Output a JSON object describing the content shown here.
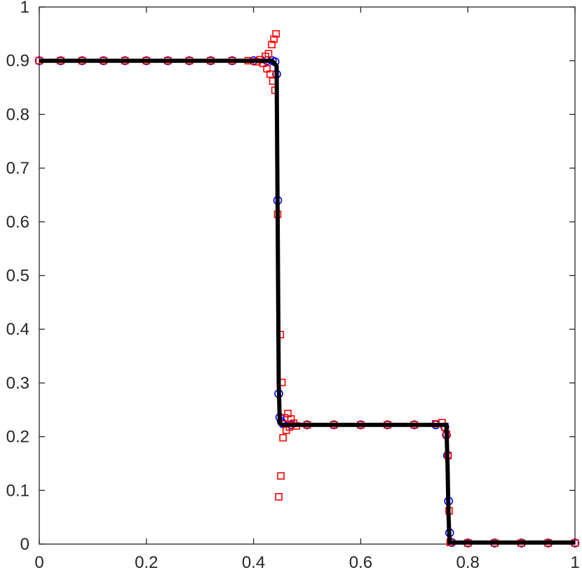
{
  "chart_data": {
    "type": "line",
    "title": "",
    "xlabel": "",
    "ylabel": "",
    "xlim": [
      0,
      1
    ],
    "ylim": [
      0,
      1
    ],
    "grid": false,
    "legend": "none",
    "x_ticks": [
      {
        "value": 0,
        "label": "0"
      },
      {
        "value": 0.2,
        "label": "0.2"
      },
      {
        "value": 0.4,
        "label": "0.4"
      },
      {
        "value": 0.6,
        "label": "0.6"
      },
      {
        "value": 0.8,
        "label": "0.8"
      },
      {
        "value": 1,
        "label": "1"
      }
    ],
    "y_ticks": [
      {
        "value": 0,
        "label": "0"
      },
      {
        "value": 0.1,
        "label": "0.1"
      },
      {
        "value": 0.2,
        "label": "0.2"
      },
      {
        "value": 0.3,
        "label": "0.3"
      },
      {
        "value": 0.4,
        "label": "0.4"
      },
      {
        "value": 0.5,
        "label": "0.5"
      },
      {
        "value": 0.6,
        "label": "0.6"
      },
      {
        "value": 0.7,
        "label": "0.7"
      },
      {
        "value": 0.8,
        "label": "0.8"
      },
      {
        "value": 0.9,
        "label": "0.9"
      },
      {
        "value": 1,
        "label": "1"
      }
    ],
    "series": [
      {
        "style": "line",
        "color": "#000000",
        "points": [
          [
            0,
            0.9
          ],
          [
            0.435,
            0.9
          ],
          [
            0.443,
            0.89
          ],
          [
            0.445,
            0.6
          ],
          [
            0.447,
            0.3
          ],
          [
            0.449,
            0.225
          ],
          [
            0.455,
            0.222
          ],
          [
            0.76,
            0.222
          ],
          [
            0.762,
            0.15
          ],
          [
            0.764,
            0.05
          ],
          [
            0.766,
            0.003
          ],
          [
            1,
            0.003
          ]
        ]
      },
      {
        "style": "markers",
        "marker": "circle",
        "color": "#0000ff",
        "points": [
          [
            0,
            0.9
          ],
          [
            0.04,
            0.9
          ],
          [
            0.08,
            0.9
          ],
          [
            0.12,
            0.9
          ],
          [
            0.16,
            0.9
          ],
          [
            0.2,
            0.9
          ],
          [
            0.24,
            0.9
          ],
          [
            0.28,
            0.9
          ],
          [
            0.32,
            0.9
          ],
          [
            0.36,
            0.9
          ],
          [
            0.4,
            0.9
          ],
          [
            0.425,
            0.9
          ],
          [
            0.435,
            0.9
          ],
          [
            0.44,
            0.898
          ],
          [
            0.443,
            0.875
          ],
          [
            0.445,
            0.64
          ],
          [
            0.447,
            0.28
          ],
          [
            0.449,
            0.236
          ],
          [
            0.452,
            0.228
          ],
          [
            0.455,
            0.224
          ],
          [
            0.47,
            0.222
          ],
          [
            0.5,
            0.222
          ],
          [
            0.55,
            0.222
          ],
          [
            0.6,
            0.222
          ],
          [
            0.65,
            0.222
          ],
          [
            0.7,
            0.222
          ],
          [
            0.74,
            0.222
          ],
          [
            0.757,
            0.218
          ],
          [
            0.76,
            0.203
          ],
          [
            0.762,
            0.165
          ],
          [
            0.764,
            0.08
          ],
          [
            0.766,
            0.021
          ],
          [
            0.77,
            0.003
          ],
          [
            0.8,
            0.002
          ],
          [
            0.85,
            0.002
          ],
          [
            0.9,
            0.002
          ],
          [
            0.95,
            0.002
          ],
          [
            1,
            0.002
          ]
        ]
      },
      {
        "style": "markers",
        "marker": "square",
        "color": "#ff0000",
        "points": [
          [
            0,
            0.9
          ],
          [
            0.04,
            0.9
          ],
          [
            0.08,
            0.9
          ],
          [
            0.12,
            0.9
          ],
          [
            0.16,
            0.9
          ],
          [
            0.2,
            0.9
          ],
          [
            0.24,
            0.9
          ],
          [
            0.28,
            0.9
          ],
          [
            0.32,
            0.9
          ],
          [
            0.36,
            0.9
          ],
          [
            0.39,
            0.9
          ],
          [
            0.405,
            0.898
          ],
          [
            0.412,
            0.902
          ],
          [
            0.418,
            0.895
          ],
          [
            0.422,
            0.908
          ],
          [
            0.425,
            0.885
          ],
          [
            0.428,
            0.913
          ],
          [
            0.431,
            0.875
          ],
          [
            0.434,
            0.93
          ],
          [
            0.436,
            0.862
          ],
          [
            0.438,
            0.94
          ],
          [
            0.44,
            0.845
          ],
          [
            0.442,
            0.95
          ],
          [
            0.445,
            0.614
          ],
          [
            0.447,
            0.088
          ],
          [
            0.451,
            0.127
          ],
          [
            0.45,
            0.39
          ],
          [
            0.453,
            0.301
          ],
          [
            0.455,
            0.198
          ],
          [
            0.458,
            0.235
          ],
          [
            0.461,
            0.212
          ],
          [
            0.464,
            0.243
          ],
          [
            0.467,
            0.218
          ],
          [
            0.47,
            0.233
          ],
          [
            0.475,
            0.225
          ],
          [
            0.48,
            0.22
          ],
          [
            0.5,
            0.222
          ],
          [
            0.55,
            0.222
          ],
          [
            0.6,
            0.222
          ],
          [
            0.65,
            0.222
          ],
          [
            0.7,
            0.222
          ],
          [
            0.74,
            0.224
          ],
          [
            0.752,
            0.226
          ],
          [
            0.757,
            0.218
          ],
          [
            0.76,
            0.205
          ],
          [
            0.763,
            0.165
          ],
          [
            0.765,
            0.062
          ],
          [
            0.767,
            0.003
          ],
          [
            0.8,
            0.002
          ],
          [
            0.85,
            0.002
          ],
          [
            0.9,
            0.002
          ],
          [
            0.95,
            0.002
          ],
          [
            1,
            0.002
          ]
        ]
      }
    ]
  }
}
